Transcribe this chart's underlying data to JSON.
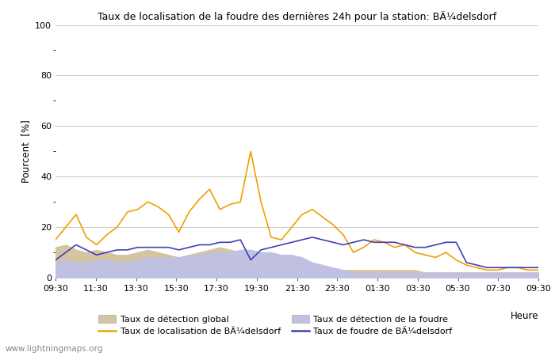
{
  "title_raw": "Taux de localisation de la foudre des dernières 24h pour la station: BÄ¼delsdorf",
  "ylabel": "Pourcent  [%]",
  "xlabel": "Heure",
  "ylim": [
    0,
    100
  ],
  "background_color": "#ffffff",
  "watermark": "www.lightningmaps.org",
  "x_tick_labels": [
    "09:30",
    "11:30",
    "13:30",
    "15:30",
    "17:30",
    "19:30",
    "21:30",
    "23:30",
    "01:30",
    "03:30",
    "05:30",
    "07:30",
    "09:30"
  ],
  "n_points": 48,
  "global_detection_fill": [
    12,
    13,
    11,
    10,
    11,
    10,
    9,
    9,
    10,
    11,
    10,
    9,
    8,
    9,
    10,
    11,
    12,
    11,
    10,
    9,
    8,
    7,
    6,
    5,
    5,
    4,
    4,
    3,
    3,
    3,
    3,
    3,
    3,
    3,
    3,
    3,
    2,
    2,
    2,
    2,
    2,
    2,
    2,
    2,
    2,
    2,
    2,
    2
  ],
  "lightning_detection_fill": [
    6,
    7,
    6,
    6,
    7,
    7,
    6,
    6,
    7,
    8,
    8,
    8,
    8,
    9,
    9,
    10,
    10,
    10,
    11,
    11,
    10,
    10,
    9,
    9,
    8,
    6,
    5,
    4,
    3,
    2,
    2,
    2,
    2,
    2,
    2,
    2,
    2,
    2,
    2,
    2,
    2,
    2,
    2,
    2,
    2,
    2,
    2,
    2
  ],
  "localization_rate": [
    15,
    20,
    25,
    16,
    13,
    17,
    20,
    26,
    27,
    30,
    28,
    25,
    18,
    26,
    31,
    35,
    27,
    29,
    30,
    50,
    30,
    16,
    15,
    20,
    25,
    27,
    24,
    21,
    17,
    10,
    12,
    15,
    14,
    12,
    13,
    10,
    9,
    8,
    10,
    7,
    5,
    4,
    3,
    3,
    4,
    4,
    3,
    3
  ],
  "lightning_rate": [
    7,
    10,
    13,
    11,
    9,
    10,
    11,
    11,
    12,
    12,
    12,
    12,
    11,
    12,
    13,
    13,
    14,
    14,
    15,
    7,
    11,
    12,
    13,
    14,
    15,
    16,
    15,
    14,
    13,
    14,
    15,
    14,
    14,
    14,
    13,
    12,
    12,
    13,
    14,
    14,
    6,
    5,
    4,
    4,
    4,
    4,
    4,
    4
  ],
  "color_global_fill": "#d4c4a0",
  "color_lightning_fill": "#c0c0e0",
  "color_loc_line": "#f0a000",
  "color_light_line": "#4040bb",
  "label_global": "Taux de détection global",
  "label_localization": "Taux de localisation de BÄ¼delsdorf",
  "label_lightning_det": "Taux de détection de la foudre",
  "label_lightning_rate": "Taux de foudre de BÄ¼delsdorf",
  "yticks_major": [
    0,
    20,
    40,
    60,
    80,
    100
  ],
  "yticks_minor": [
    10,
    30,
    50,
    70,
    90
  ]
}
